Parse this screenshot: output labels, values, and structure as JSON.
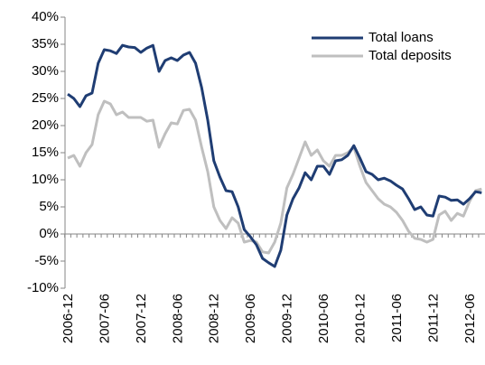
{
  "chart_data": {
    "type": "line",
    "categories": [
      "2006-12",
      null,
      null,
      null,
      null,
      null,
      "2007-06",
      null,
      null,
      null,
      null,
      null,
      "2007-12",
      null,
      null,
      null,
      null,
      null,
      "2008-06",
      null,
      null,
      null,
      null,
      null,
      "2008-12",
      null,
      null,
      null,
      null,
      null,
      "2009-06",
      null,
      null,
      null,
      null,
      null,
      "2009-12",
      null,
      null,
      null,
      null,
      null,
      "2010-06",
      null,
      null,
      null,
      null,
      null,
      "2010-12",
      null,
      null,
      null,
      null,
      null,
      "2011-06",
      null,
      null,
      null,
      null,
      null,
      "2011-12",
      null,
      null,
      null,
      null,
      null,
      "2012-06",
      null,
      null
    ],
    "series": [
      {
        "name": "Total loans",
        "color": "#1f3d73",
        "values": [
          25.8,
          25,
          23.5,
          25.5,
          26,
          31.5,
          34,
          33.8,
          33.3,
          34.8,
          34.5,
          34.4,
          33.5,
          34.3,
          34.8,
          30,
          32,
          32.5,
          32,
          33,
          33.5,
          31.5,
          27,
          21,
          13.5,
          10.5,
          8,
          7.8,
          5,
          0.8,
          -0.5,
          -2,
          -4.5,
          -5.3,
          -6,
          -3,
          3.5,
          6.5,
          8.5,
          11.3,
          10,
          12.5,
          12.5,
          11,
          13.5,
          13.7,
          14.5,
          16.3,
          14,
          11.5,
          11,
          10,
          10.3,
          9.8,
          9,
          8.3,
          6.5,
          4.5,
          5,
          3.5,
          3.3,
          7,
          6.8,
          6.2,
          6.3,
          5.5,
          6.5,
          7.8,
          7.6
        ]
      },
      {
        "name": "Total deposits",
        "color": "#bfbfbf",
        "values": [
          14,
          14.5,
          12.5,
          15,
          16.5,
          22,
          24.5,
          24,
          22,
          22.5,
          21.5,
          21.5,
          21.5,
          20.8,
          21,
          16,
          18.5,
          20.5,
          20.3,
          22.8,
          23,
          21,
          16,
          11.5,
          5,
          2.5,
          1,
          3,
          2,
          -1.5,
          -1.2,
          -1.5,
          -3.3,
          -3.5,
          -1.5,
          2,
          8.5,
          11,
          14,
          17,
          14.5,
          15.5,
          13.5,
          12.5,
          14.5,
          14.5,
          15,
          16,
          12.5,
          9.5,
          8,
          6.5,
          5.5,
          5,
          4,
          2.5,
          0.5,
          -0.8,
          -1,
          -1.5,
          -1,
          3.5,
          4.2,
          2.5,
          3.8,
          3.3,
          6,
          8,
          8.3
        ]
      }
    ],
    "ylim": [
      -10,
      40
    ],
    "yticks": [
      {
        "value": -10,
        "label": "-10%"
      },
      {
        "value": -5,
        "label": "-5%"
      },
      {
        "value": 0,
        "label": "0%"
      },
      {
        "value": 5,
        "label": "5%"
      },
      {
        "value": 10,
        "label": "10%"
      },
      {
        "value": 15,
        "label": "15%"
      },
      {
        "value": 20,
        "label": "20%"
      },
      {
        "value": 25,
        "label": "25%"
      },
      {
        "value": 30,
        "label": "30%"
      },
      {
        "value": 35,
        "label": "35%"
      },
      {
        "value": 40,
        "label": "40%"
      }
    ],
    "legend": "upper right"
  }
}
